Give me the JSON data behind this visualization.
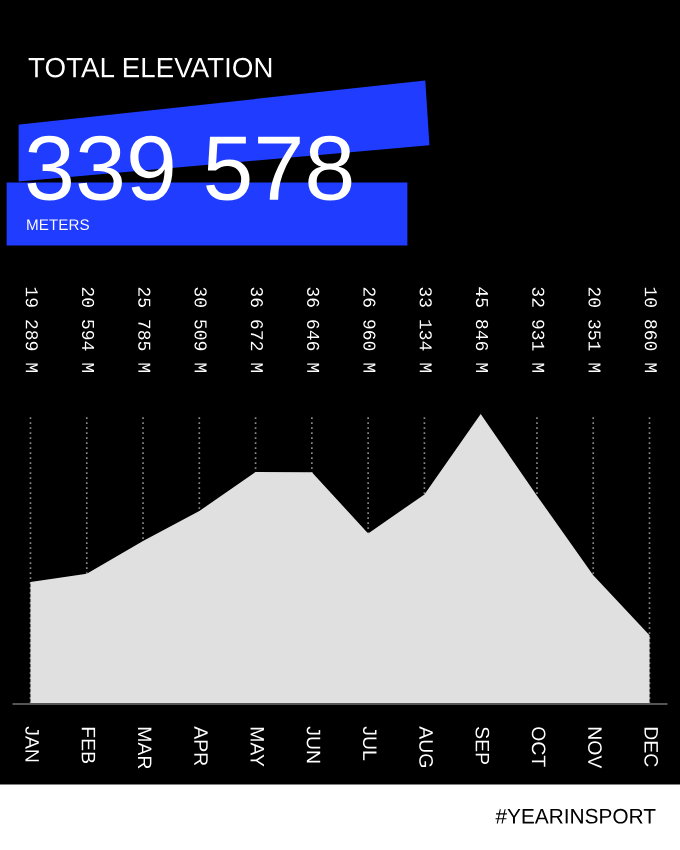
{
  "chart_data": {
    "type": "area",
    "title": "TOTAL ELEVATION",
    "subtitle": "339 578",
    "annotations": [
      "METERS",
      "#YEARINSPORT"
    ],
    "categories": [
      "JAN",
      "FEB",
      "MAR",
      "APR",
      "MAY",
      "JUN",
      "JUL",
      "AUG",
      "SEP",
      "OCT",
      "NOV",
      "DEC"
    ],
    "series": [
      {
        "color": "#e0e0e0",
        "values": [
          19289,
          20594,
          25785,
          30509,
          36672,
          36646,
          26960,
          33134,
          45846,
          32931,
          20351,
          10860
        ],
        "value_labels": [
          "19 289 M",
          "20 594 M",
          "25 785 M",
          "30 509 M",
          "36 672 M",
          "36 646 M",
          "26 960 M",
          "33 134 M",
          "45 846 M",
          "32 931 M",
          "20 351 M",
          "10 860 M"
        ]
      }
    ],
    "grid": "x"
  }
}
